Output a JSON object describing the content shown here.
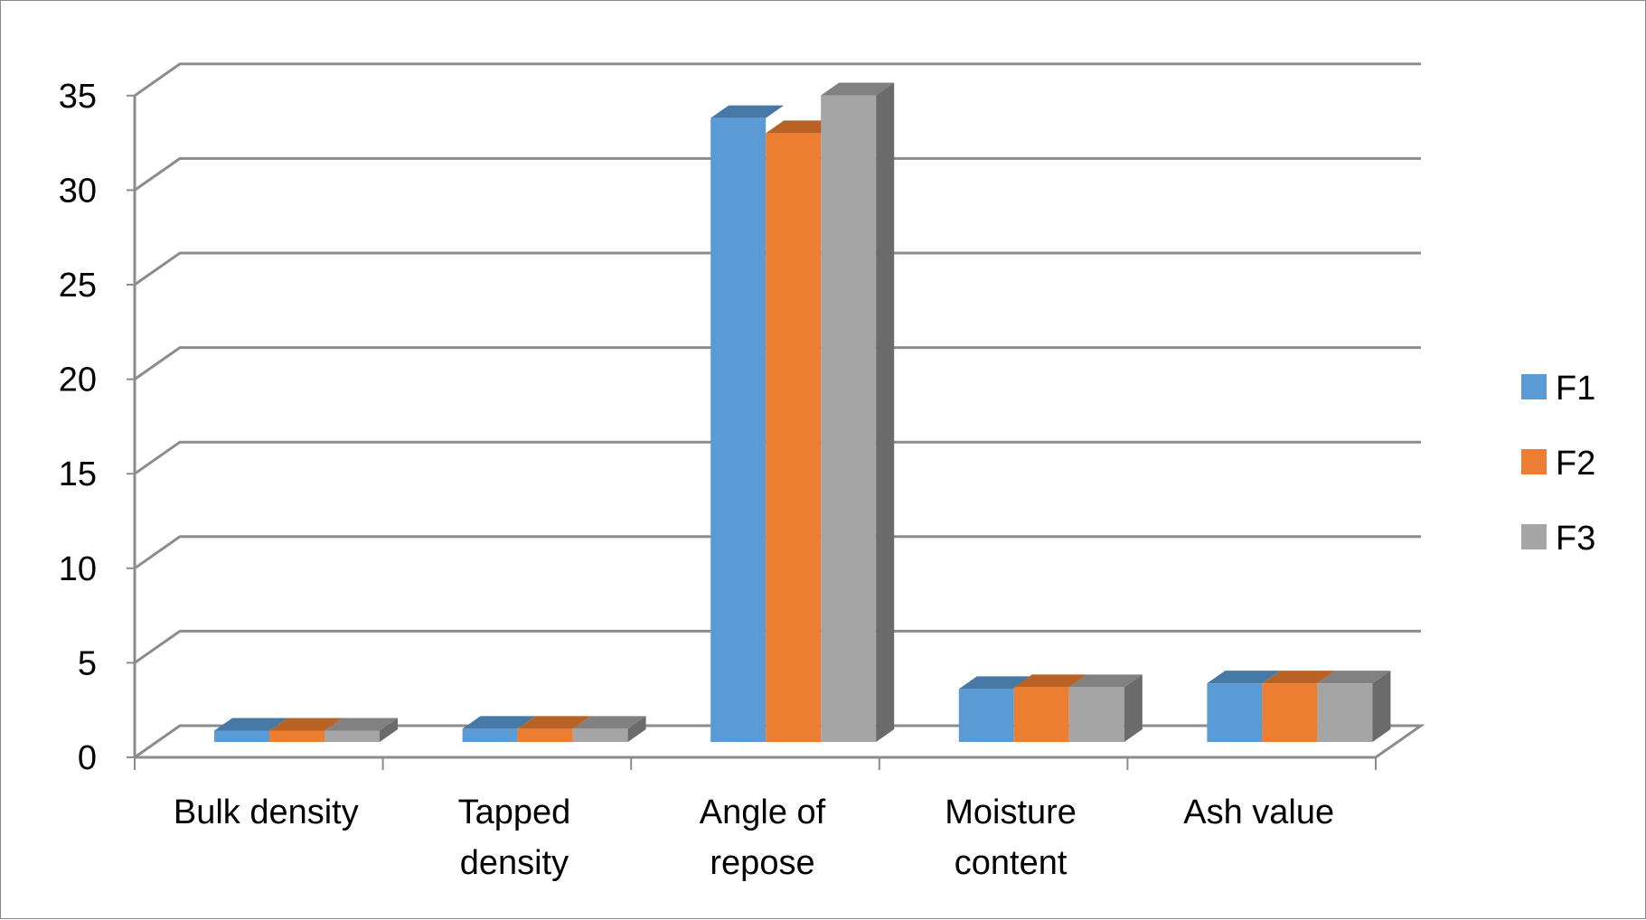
{
  "chart_data": {
    "type": "bar",
    "style": "3d-clustered-column",
    "title": "",
    "xlabel": "",
    "ylabel": "",
    "ylim": [
      0,
      35
    ],
    "yticks": [
      0,
      5,
      10,
      15,
      20,
      25,
      30,
      35
    ],
    "grid": true,
    "legend_position": "right",
    "categories": [
      [
        "Bulk density"
      ],
      [
        "Tapped",
        "density"
      ],
      [
        "Angle of",
        "repose"
      ],
      [
        "Moisture",
        "content"
      ],
      [
        "Ash value"
      ]
    ],
    "series": [
      {
        "name": "F1",
        "color": "#5b9bd5",
        "values": [
          0.6,
          0.7,
          33.0,
          2.8,
          3.1
        ]
      },
      {
        "name": "F2",
        "color": "#ed7d31",
        "values": [
          0.6,
          0.7,
          32.2,
          2.9,
          3.1
        ]
      },
      {
        "name": "F3",
        "color": "#a5a5a5",
        "values": [
          0.6,
          0.7,
          34.2,
          2.9,
          3.1
        ]
      }
    ]
  }
}
